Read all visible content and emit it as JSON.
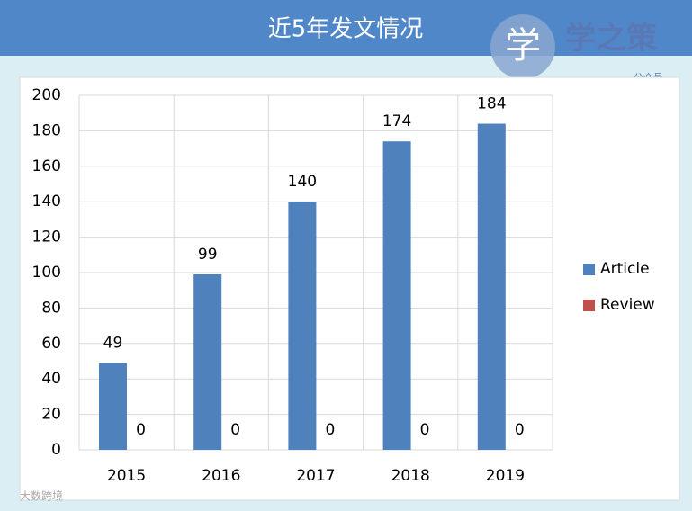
{
  "chart_data": {
    "type": "bar",
    "title": "近5年发文情况",
    "categories": [
      "2015",
      "2016",
      "2017",
      "2018",
      "2019"
    ],
    "series": [
      {
        "name": "Article",
        "color": "#4f81bd",
        "values": [
          49,
          99,
          140,
          174,
          184
        ]
      },
      {
        "name": "Review",
        "color": "#c0504d",
        "values": [
          0,
          0,
          0,
          0,
          0
        ]
      }
    ],
    "ylim": [
      0,
      200
    ],
    "yticks": [
      0,
      20,
      40,
      60,
      80,
      100,
      120,
      140,
      160,
      180,
      200
    ],
    "grid": true,
    "legend": "right"
  },
  "brand": {
    "icon": "学",
    "name": "学之策",
    "sub": "公众号"
  },
  "watermark": "大数跨境"
}
